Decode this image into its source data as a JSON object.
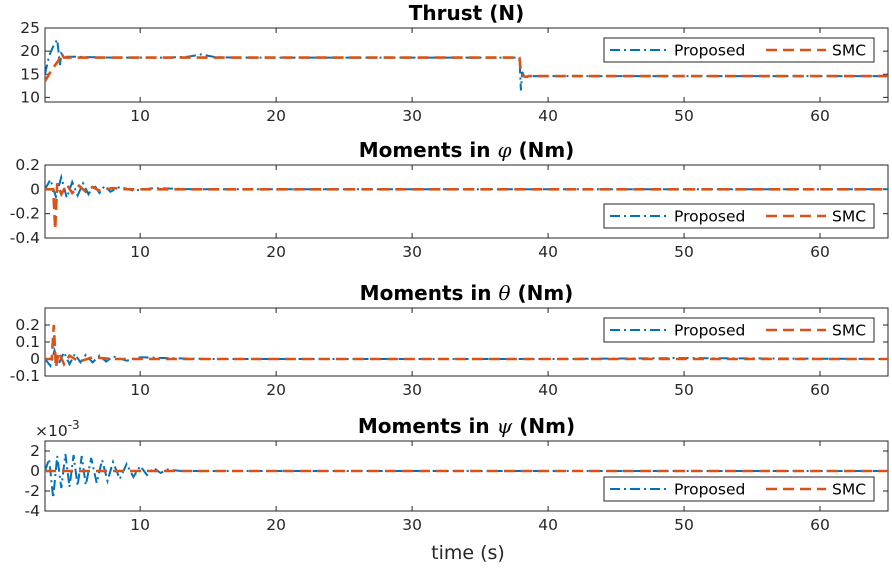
{
  "colors": {
    "proposed": "#0072BD",
    "smc": "#D95319",
    "axes": "#262626"
  },
  "shared_xlabel": "time (s)",
  "chart_data": [
    {
      "type": "line",
      "title": "Thrust (N)",
      "title_symbol": "",
      "title_suffix": "",
      "xlim": [
        3,
        65
      ],
      "ylim": [
        9,
        25
      ],
      "xticks": [
        10,
        20,
        30,
        40,
        50,
        60
      ],
      "yticks": [
        10,
        15,
        20,
        25
      ],
      "yexp": "",
      "legend": {
        "placement": "top-right",
        "entries": [
          "Proposed",
          "SMC"
        ]
      },
      "series": [
        {
          "name": "Proposed",
          "style": "dashdot",
          "x": [
            3,
            3.3,
            3.6,
            3.9,
            4.1,
            4.2,
            4.3,
            4.6,
            5,
            6,
            8,
            10,
            12,
            13.5,
            14.5,
            15.5,
            17,
            20,
            25,
            30,
            35,
            37.9,
            38.0,
            38.1,
            38.3,
            38.6,
            40,
            45,
            50,
            55,
            60,
            65
          ],
          "y": [
            15,
            19,
            21,
            22.5,
            17,
            19.5,
            19.2,
            18.8,
            18.8,
            18.7,
            18.6,
            18.6,
            18.6,
            18.8,
            19.3,
            18.7,
            18.6,
            18.6,
            18.6,
            18.6,
            18.6,
            18.6,
            11.5,
            15.5,
            14.2,
            14.6,
            14.6,
            14.6,
            14.6,
            14.6,
            14.6,
            14.6
          ]
        },
        {
          "name": "SMC",
          "style": "dashed",
          "x": [
            3,
            3.5,
            4.0,
            4.2,
            4.4,
            5,
            10,
            20,
            30,
            37.9,
            38.0,
            38.3,
            38.6,
            40,
            50,
            65
          ],
          "y": [
            13.5,
            16,
            18,
            19.5,
            18.6,
            18.6,
            18.6,
            18.6,
            18.6,
            18.6,
            15.3,
            14.4,
            14.6,
            14.6,
            14.6,
            14.6
          ]
        }
      ]
    },
    {
      "type": "line",
      "title": "Moments in ",
      "title_symbol": "φ",
      "title_suffix": " (Nm)",
      "xlim": [
        3,
        65
      ],
      "ylim": [
        -0.4,
        0.2
      ],
      "xticks": [
        10,
        20,
        30,
        40,
        50,
        60
      ],
      "yticks": [
        -0.4,
        -0.2,
        0,
        0.2
      ],
      "yexp": "",
      "legend": {
        "placement": "bottom-right",
        "entries": [
          "Proposed",
          "SMC"
        ]
      },
      "series": [
        {
          "name": "Proposed",
          "style": "dashdot",
          "x": [
            3,
            3.4,
            3.8,
            4.2,
            4.6,
            5.0,
            5.4,
            5.8,
            6.2,
            6.6,
            7.0,
            7.4,
            7.8,
            8.5,
            9.5,
            11,
            14,
            20,
            30,
            40,
            50,
            65
          ],
          "y": [
            0,
            0.08,
            -0.06,
            0.1,
            -0.07,
            0.06,
            -0.05,
            0.05,
            -0.04,
            0.04,
            -0.03,
            0.03,
            -0.02,
            0.02,
            -0.01,
            0.01,
            0,
            0,
            0,
            0,
            0,
            0
          ]
        },
        {
          "name": "SMC",
          "style": "dashed",
          "x": [
            3,
            3.6,
            3.75,
            3.9,
            4.2,
            4.6,
            5.0,
            5.5,
            6.0,
            6.5,
            7.0,
            8.0,
            9.0,
            10,
            20,
            40,
            65
          ],
          "y": [
            0,
            0,
            -0.33,
            0.05,
            -0.04,
            0.04,
            -0.03,
            0.03,
            -0.02,
            0.02,
            -0.01,
            0.01,
            0,
            0,
            0,
            0,
            0
          ]
        }
      ]
    },
    {
      "type": "line",
      "title": "Moments in ",
      "title_symbol": "θ",
      "title_suffix": " (Nm)",
      "xlim": [
        3,
        65
      ],
      "ylim": [
        -0.1,
        0.3
      ],
      "xticks": [
        10,
        20,
        30,
        40,
        50,
        60
      ],
      "yticks": [
        -0.1,
        0,
        0.1,
        0.2
      ],
      "yexp": "",
      "legend": {
        "placement": "top-right",
        "entries": [
          "Proposed",
          "SMC"
        ]
      },
      "series": [
        {
          "name": "Proposed",
          "style": "dashdot",
          "x": [
            3,
            3.4,
            3.7,
            4.0,
            4.4,
            4.8,
            5.2,
            5.6,
            6.0,
            6.5,
            7.0,
            7.5,
            8.0,
            9.0,
            10,
            12,
            15,
            20,
            30,
            40,
            50,
            65
          ],
          "y": [
            0,
            -0.04,
            0.05,
            -0.03,
            0.04,
            -0.03,
            0.03,
            -0.02,
            0.025,
            -0.02,
            0.02,
            -0.015,
            0.015,
            -0.01,
            0.01,
            0.005,
            0,
            0,
            0,
            0,
            0.005,
            0
          ]
        },
        {
          "name": "SMC",
          "style": "dashed",
          "x": [
            3,
            3.5,
            3.65,
            3.8,
            4.0,
            4.4,
            4.8,
            5.5,
            6.5,
            8,
            10,
            20,
            40,
            65
          ],
          "y": [
            0,
            0,
            0.2,
            -0.05,
            0.04,
            -0.03,
            0.02,
            -0.015,
            0.01,
            0,
            0,
            0,
            0,
            0
          ]
        }
      ]
    },
    {
      "type": "line",
      "title": "Moments in ",
      "title_symbol": "ψ",
      "title_suffix": " (Nm)",
      "xlim": [
        3,
        65
      ],
      "ylim": [
        -4,
        3
      ],
      "xticks": [
        10,
        20,
        30,
        40,
        50,
        60
      ],
      "yticks": [
        -4,
        -2,
        0,
        2
      ],
      "yexp": "×10",
      "yexp_power": "-3",
      "legend": {
        "placement": "bottom-right",
        "entries": [
          "Proposed",
          "SMC"
        ]
      },
      "series": [
        {
          "name": "Proposed",
          "style": "dashdot",
          "x": [
            3,
            3.3,
            3.6,
            3.9,
            4.2,
            4.5,
            4.8,
            5.1,
            5.4,
            5.7,
            6.0,
            6.4,
            6.8,
            7.2,
            7.6,
            8.0,
            8.5,
            9.0,
            9.5,
            10,
            10.5,
            11,
            11.5,
            12,
            13,
            15,
            20,
            30,
            40,
            50,
            65
          ],
          "y": [
            0,
            1.2,
            -2.7,
            1.5,
            -1.7,
            1.7,
            -1.6,
            1.6,
            -1.5,
            1.5,
            -1.4,
            1.3,
            -1.2,
            1.1,
            -1.0,
            0.9,
            -0.8,
            0.7,
            -0.6,
            0.5,
            -0.4,
            0.3,
            -0.2,
            0.15,
            0,
            0,
            0,
            0,
            0,
            0,
            0
          ]
        },
        {
          "name": "SMC",
          "style": "dashed",
          "x": [
            3,
            65
          ],
          "y": [
            0,
            0
          ]
        }
      ]
    }
  ]
}
